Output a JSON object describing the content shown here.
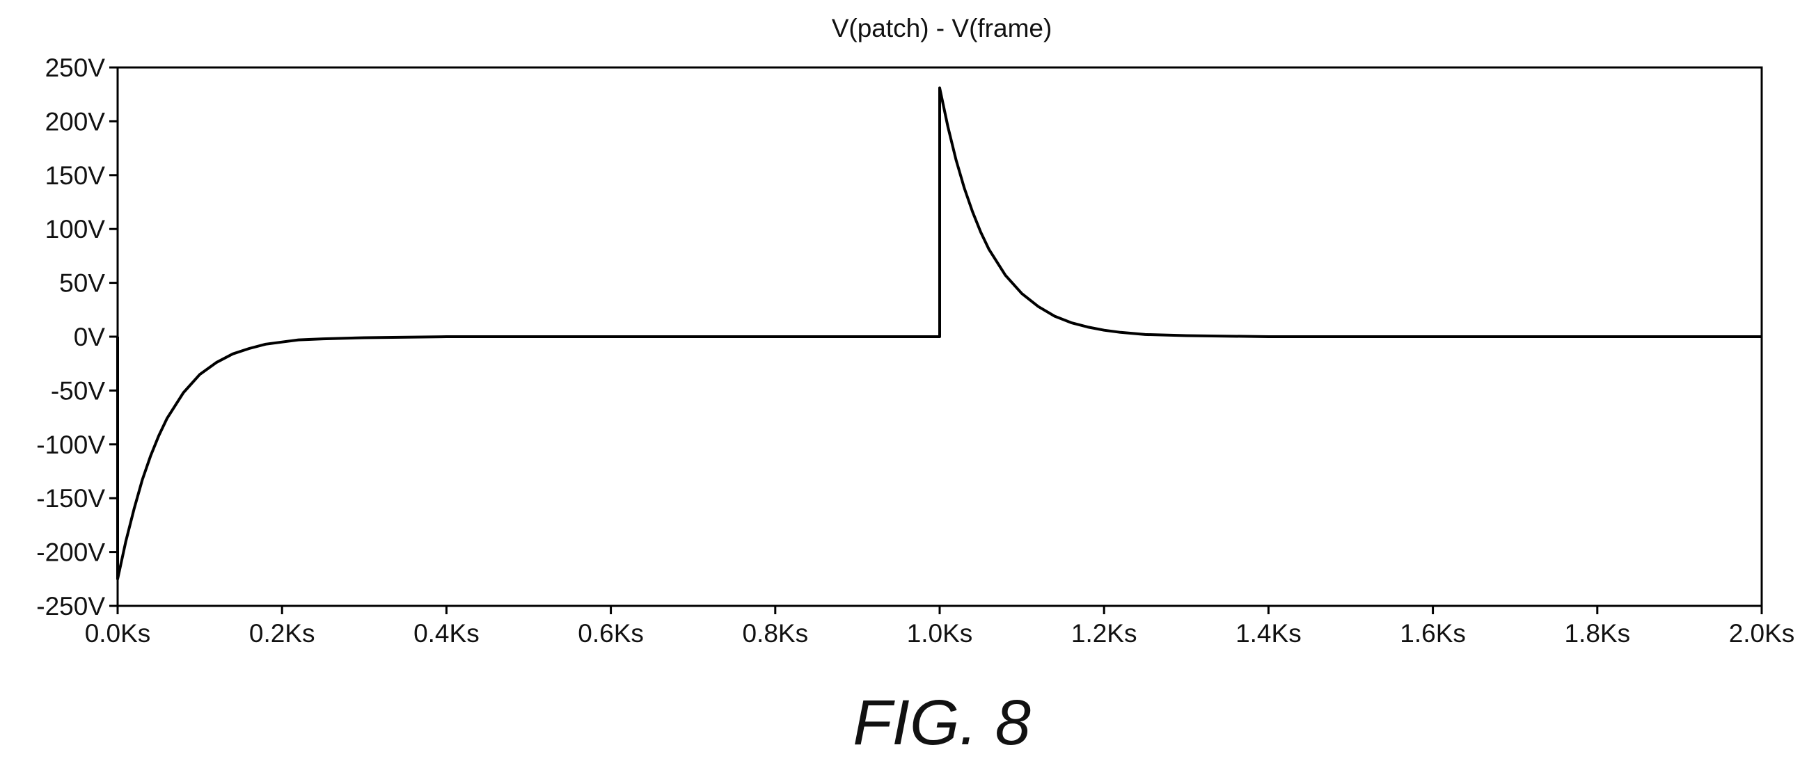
{
  "chart_data": {
    "type": "line",
    "title": "V(patch) - V(frame)",
    "xlabel": "",
    "ylabel": "",
    "xlim": [
      0,
      2.0
    ],
    "ylim": [
      -250,
      250
    ],
    "x_ticks": [
      0.0,
      0.2,
      0.4,
      0.6,
      0.8,
      1.0,
      1.2,
      1.4,
      1.6,
      1.8,
      2.0
    ],
    "x_tick_labels": [
      "0.0Ks",
      "0.2Ks",
      "0.4Ks",
      "0.6Ks",
      "0.8Ks",
      "1.0Ks",
      "1.2Ks",
      "1.4Ks",
      "1.6Ks",
      "1.8Ks",
      "2.0Ks"
    ],
    "y_ticks": [
      250,
      200,
      150,
      100,
      50,
      0,
      -50,
      -100,
      -150,
      -200,
      -250
    ],
    "y_tick_labels": [
      "250V",
      "200V",
      "150V",
      "100V",
      "50V",
      "0V",
      "-50V",
      "-100V",
      "-150V",
      "-200V",
      "-250V"
    ],
    "grid": false,
    "legend": "none",
    "series": [
      {
        "color": "#000000",
        "x": [
          0.0,
          0.0,
          0.01,
          0.02,
          0.03,
          0.04,
          0.05,
          0.06,
          0.08,
          0.1,
          0.12,
          0.14,
          0.16,
          0.18,
          0.2,
          0.22,
          0.25,
          0.3,
          0.4,
          0.6,
          0.8,
          1.0,
          1.0,
          1.01,
          1.02,
          1.03,
          1.04,
          1.05,
          1.06,
          1.08,
          1.1,
          1.12,
          1.14,
          1.16,
          1.18,
          1.2,
          1.22,
          1.25,
          1.3,
          1.4,
          1.6,
          1.8,
          2.0
        ],
        "y": [
          0,
          -225,
          -190,
          -160,
          -133,
          -111,
          -92,
          -76,
          -52,
          -35,
          -24,
          -16,
          -11,
          -7,
          -5,
          -3,
          -2,
          -1,
          0,
          0,
          0,
          0,
          231,
          195,
          164,
          138,
          116,
          97,
          81,
          57,
          40,
          28,
          19,
          13,
          9,
          6,
          4,
          2,
          1,
          0,
          0,
          0,
          0
        ]
      }
    ]
  },
  "figure_caption": "FIG. 8"
}
